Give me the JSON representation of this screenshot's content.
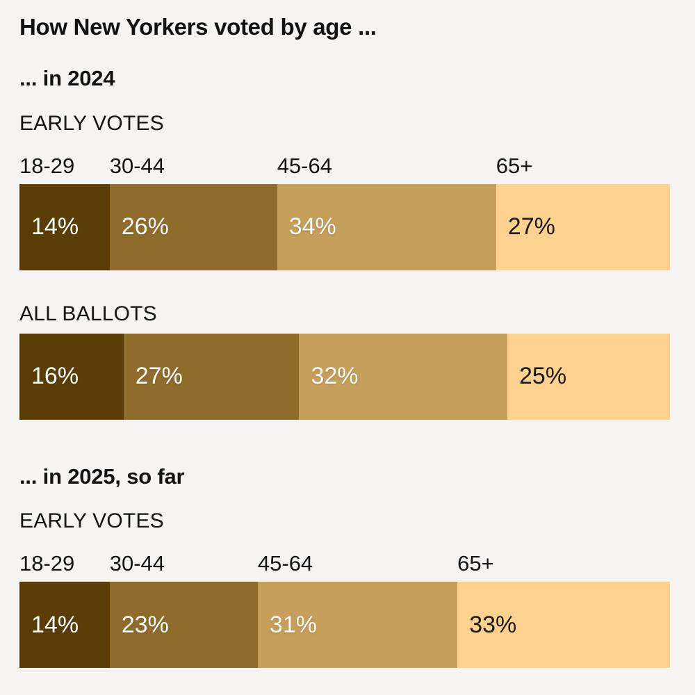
{
  "page": {
    "background": "#f5f4f2",
    "text_color": "#121212",
    "title": "How New Yorkers voted by age ..."
  },
  "chart_data": {
    "type": "bar",
    "variant": "horizontal-stacked-100pct",
    "title": "How New Yorkers voted by age ...",
    "categories": [
      "18-29",
      "30-44",
      "45-64",
      "65+"
    ],
    "category_colors": [
      "#5b3d06",
      "#906c2b",
      "#c69f5a",
      "#fdd28f"
    ],
    "value_label_styles": [
      "light",
      "light",
      "light",
      "dark"
    ],
    "value_suffix": "%",
    "legend_position": "labels-above-bar",
    "grid": false,
    "sections": [
      {
        "title": "... in 2024",
        "rows": [
          {
            "label": "EARLY VOTES",
            "show_category_labels": true,
            "values": [
              14,
              26,
              34,
              27
            ]
          },
          {
            "label": "ALL BALLOTS",
            "show_category_labels": false,
            "values": [
              16,
              27,
              32,
              25
            ]
          }
        ]
      },
      {
        "title": "... in 2025, so far",
        "rows": [
          {
            "label": "EARLY VOTES",
            "show_category_labels": true,
            "values": [
              14,
              23,
              31,
              33
            ]
          }
        ]
      }
    ]
  }
}
